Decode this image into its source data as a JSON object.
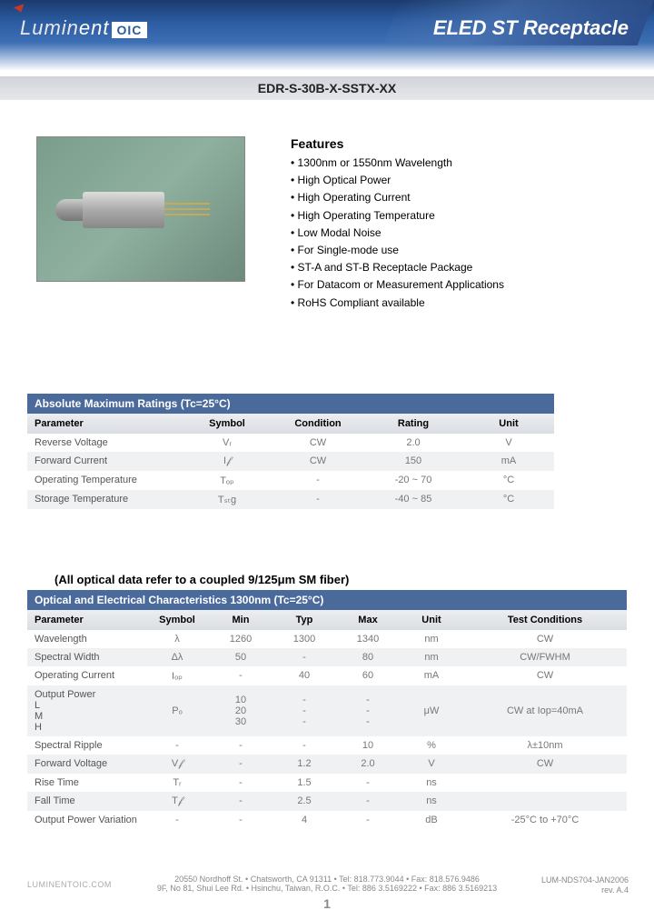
{
  "header": {
    "logo_pre": "Lumin",
    "logo_post": "ent",
    "logo_box": "OIC",
    "product_title": "ELED ST Receptacle",
    "subtitle": "EDR-S-30B-X-SSTX-XX"
  },
  "features": {
    "title": "Features",
    "items": [
      "1300nm or 1550nm Wavelength",
      "High Optical Power",
      "High Operating Current",
      "High Operating Temperature",
      "Low Modal Noise",
      "For Single-mode use",
      "ST-A and ST-B Receptacle Package",
      "For Datacom or Measurement Applications",
      "RoHS Compliant available"
    ]
  },
  "table1": {
    "section_title": "Absolute Maximum Ratings (Tc=25°C)",
    "columns": [
      "Parameter",
      "Symbol",
      "Condition",
      "Rating",
      "Unit"
    ],
    "rows": [
      [
        "Reverse Voltage",
        "Vᵣ",
        "CW",
        "2.0",
        "V"
      ],
      [
        "Forward Current",
        "I𝒻",
        "CW",
        "150",
        "mA"
      ],
      [
        "Operating Temperature",
        "Tₒₚ",
        "-",
        "-20 ~ 70",
        "°C"
      ],
      [
        "Storage Temperature",
        "Tₛₜg",
        "-",
        "-40 ~ 85",
        "°C"
      ]
    ]
  },
  "table2": {
    "note": "(All optical data refer to a coupled 9/125μm SM fiber)",
    "section_title": "Optical and Electrical Characteristics 1300nm (Tc=25°C)",
    "columns": [
      "Parameter",
      "Symbol",
      "Min",
      "Typ",
      "Max",
      "Unit",
      "Test Conditions"
    ],
    "rows": [
      [
        "Wavelength",
        "λ",
        "1260",
        "1300",
        "1340",
        "nm",
        "CW"
      ],
      [
        "Spectral Width",
        "Δλ",
        "50",
        "-",
        "80",
        "nm",
        "CW/FWHM"
      ],
      [
        "Operating Current",
        "Iₒₚ",
        "-",
        "40",
        "60",
        "mA",
        "CW"
      ],
      [
        "Output Power\nL\nM\nH",
        "Pₒ",
        "10\n20\n30",
        "-\n-\n-",
        "-\n-\n-",
        "μW",
        "CW at Iop=40mA"
      ],
      [
        "Spectral Ripple",
        "-",
        "-",
        "-",
        "10",
        "%",
        "λ±10nm"
      ],
      [
        "Forward Voltage",
        "V𝒻",
        "-",
        "1.2",
        "2.0",
        "V",
        "CW"
      ],
      [
        "Rise Time",
        "Tᵣ",
        "-",
        "1.5",
        "-",
        "ns",
        ""
      ],
      [
        "Fall Time",
        "T𝒻",
        "-",
        "2.5",
        "-",
        "ns",
        ""
      ],
      [
        "Output Power Variation",
        "-",
        "-",
        "4",
        "-",
        "dB",
        "-25°C to +70°C"
      ]
    ]
  },
  "footer": {
    "left": "LUMINENTOIC.COM",
    "line1": "20550 Nordhoff St. • Chatsworth, CA 91311 • Tel: 818.773.9044 • Fax: 818.576.9486",
    "line2": "9F, No 81, Shui Lee Rd. • Hsinchu, Taiwan, R.O.C. • Tel: 886 3.5169222 • Fax: 886 3.5169213",
    "right1": "LUM-NDS704-JAN2006",
    "right2": "rev. A.4",
    "page": "1"
  },
  "colors": {
    "header_gradient_start": "#1a3a6d",
    "header_gradient_end": "#ffffff",
    "section_bg": "#4a6a9c",
    "row_odd": "#f0f1f3",
    "row_even": "#ffffff"
  }
}
